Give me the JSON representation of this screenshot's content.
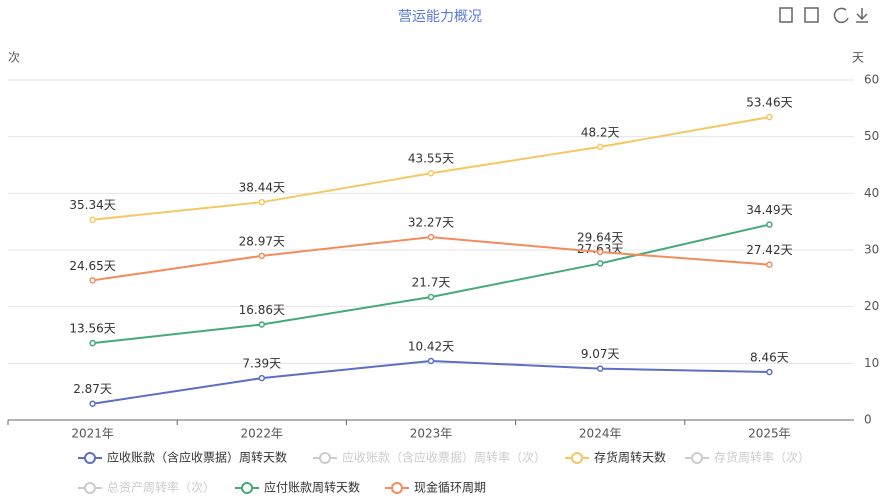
{
  "chart_data": {
    "type": "line",
    "title": "营运能力概况",
    "y_label": "次",
    "y2_label": "天",
    "categories": [
      "2021年",
      "2022年",
      "2023年",
      "2024年",
      "2025年"
    ],
    "y2lim": [
      0,
      60
    ],
    "y2ticks": [
      0,
      10,
      20,
      30,
      40,
      50,
      60
    ],
    "grid": true,
    "series": [
      {
        "name": "应收账款（含应收票据）周转天数",
        "color": "#5b6fc4",
        "axis": "y2",
        "values": [
          2.87,
          7.39,
          10.42,
          9.07,
          8.46
        ],
        "value_labels": [
          "2.87天",
          "7.39天",
          "10.42天",
          "9.07天",
          "8.46天"
        ]
      },
      {
        "name": "应收账款（含应收票据）周转率（次）",
        "color": "#cccccc",
        "inactive": true
      },
      {
        "name": "存货周转天数",
        "color": "#f5c864",
        "axis": "y2",
        "values": [
          35.34,
          38.44,
          43.55,
          48.2,
          53.46
        ],
        "value_labels": [
          "35.34天",
          "38.44天",
          "43.55天",
          "48.2天",
          "53.46天"
        ]
      },
      {
        "name": "存货周转率（次）",
        "color": "#cccccc",
        "inactive": true
      },
      {
        "name": "总资产周转率（次）",
        "color": "#cccccc",
        "inactive": true
      },
      {
        "name": "应付账款周转天数",
        "color": "#46a97a",
        "axis": "y2",
        "values": [
          13.56,
          16.86,
          21.7,
          27.63,
          34.49
        ],
        "value_labels": [
          "13.56天",
          "16.86天",
          "21.7天",
          "27.63天",
          "34.49天"
        ]
      },
      {
        "name": "现金循环周期",
        "color": "#f28c5c",
        "axis": "y2",
        "values": [
          24.65,
          28.97,
          32.27,
          29.64,
          27.42
        ],
        "value_labels": [
          "24.65天",
          "28.97天",
          "32.27天",
          "29.64天",
          "27.42天"
        ]
      }
    ]
  }
}
